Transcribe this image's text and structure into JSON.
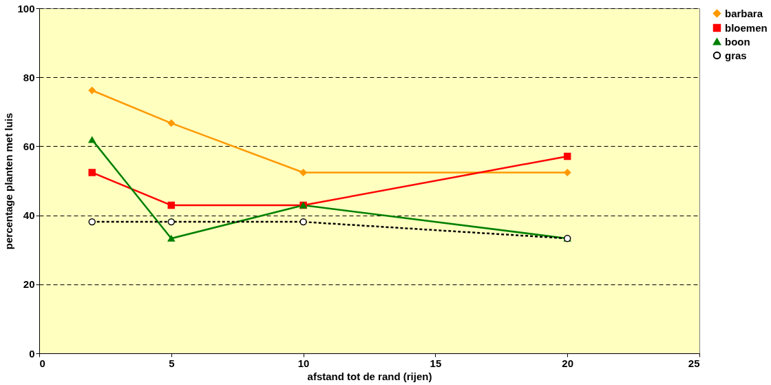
{
  "chart_data": {
    "type": "line",
    "xlabel": "afstand tot de rand (rijen)",
    "ylabel": "percentage planten met luis",
    "x": [
      2,
      5,
      10,
      20
    ],
    "series": [
      {
        "name": "barbara",
        "color": "#ff9900",
        "marker": "diamond",
        "line_style": "solid",
        "values": [
          76.2,
          66.7,
          52.4,
          52.4
        ]
      },
      {
        "name": "bloemen",
        "color": "#ff0000",
        "marker": "square",
        "line_style": "solid",
        "values": [
          52.4,
          42.9,
          42.9,
          57.1
        ]
      },
      {
        "name": "boon",
        "color": "#008000",
        "marker": "triangle",
        "line_style": "solid",
        "values": [
          61.9,
          33.3,
          42.9,
          33.3
        ]
      },
      {
        "name": "gras",
        "color": "#000000",
        "marker": "circle",
        "line_style": "dashed",
        "values": [
          38.1,
          38.1,
          38.1,
          33.3
        ]
      }
    ],
    "xlim": [
      0,
      25
    ],
    "xticks": [
      0,
      5,
      10,
      15,
      20,
      25
    ],
    "ylim": [
      0,
      100
    ],
    "yticks": [
      0,
      20,
      40,
      60,
      80,
      100
    ],
    "grid": "y",
    "legend": "right"
  }
}
